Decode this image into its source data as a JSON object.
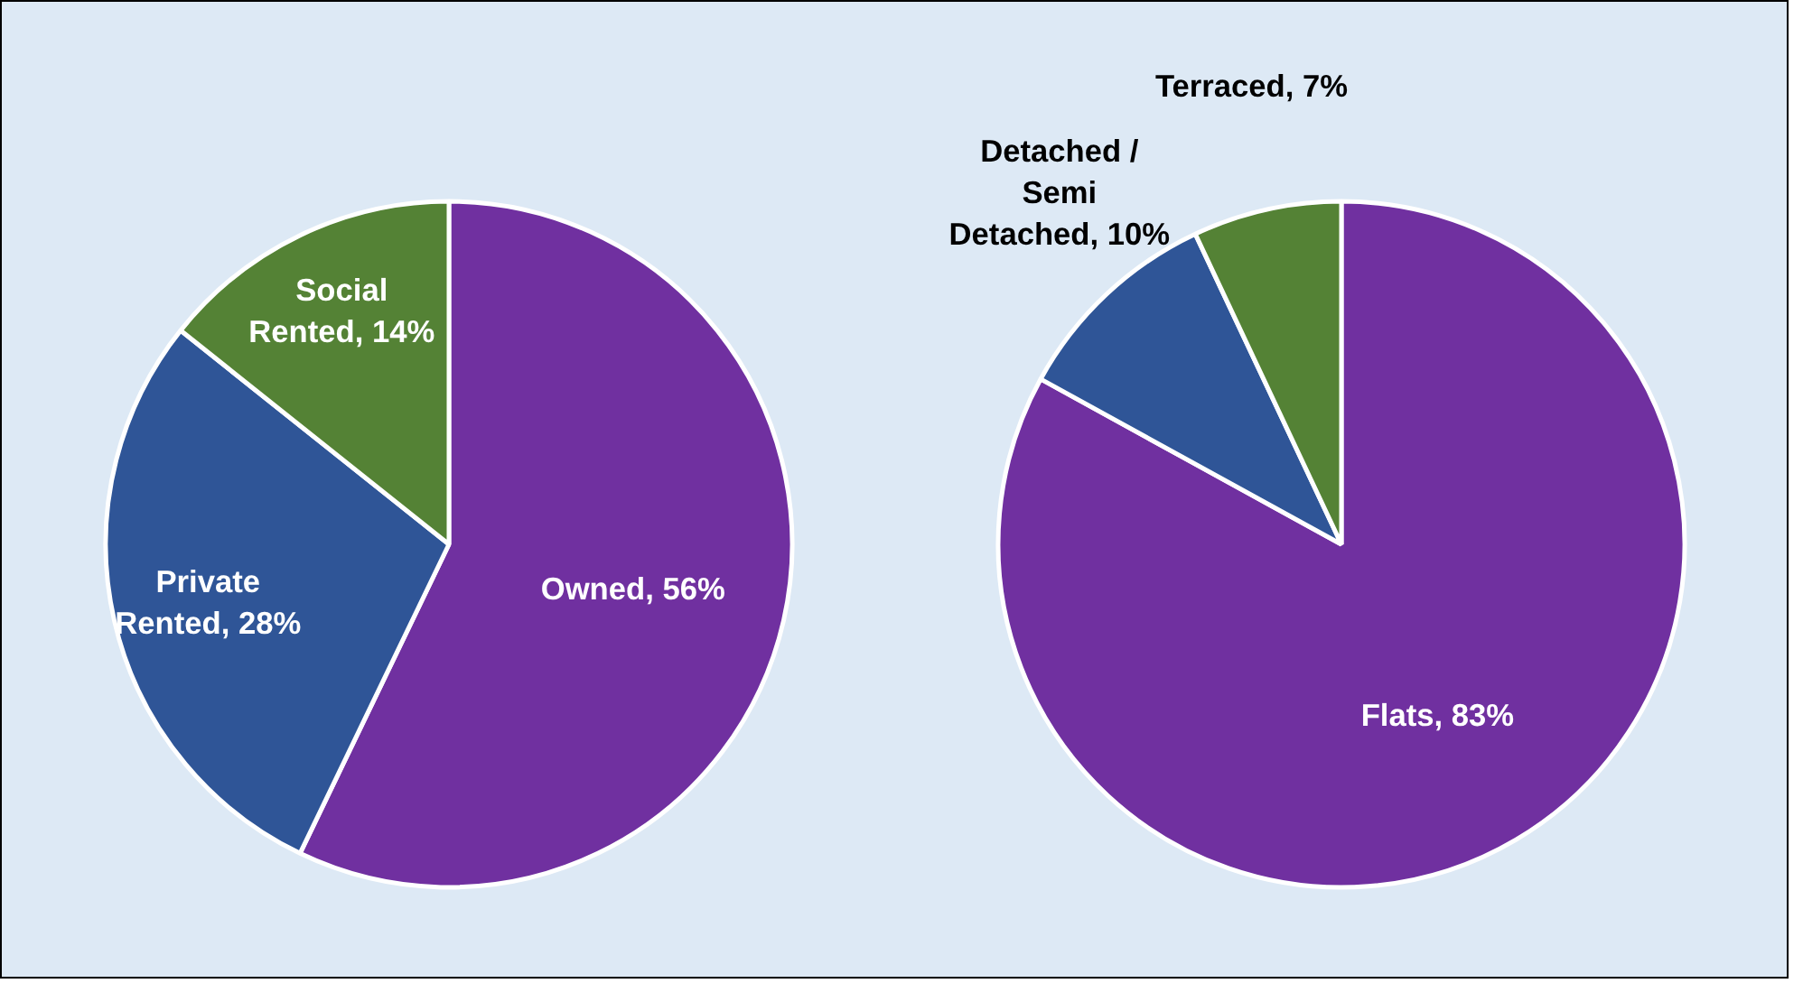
{
  "chart_data": [
    {
      "type": "pie",
      "categories": [
        "Owned",
        "Private Rented",
        "Social Rented"
      ],
      "values": [
        56,
        28,
        14
      ],
      "colors": [
        "#7030a0",
        "#2f5597",
        "#548235"
      ],
      "value_labels": [
        "56%",
        "28%",
        "14%"
      ]
    },
    {
      "type": "pie",
      "categories": [
        "Flats",
        "Detached / Semi Detached",
        "Terraced"
      ],
      "values": [
        83,
        10,
        7
      ],
      "colors": [
        "#7030a0",
        "#2f5597",
        "#548235"
      ],
      "value_labels": [
        "83%",
        "10%",
        "7%"
      ]
    }
  ]
}
